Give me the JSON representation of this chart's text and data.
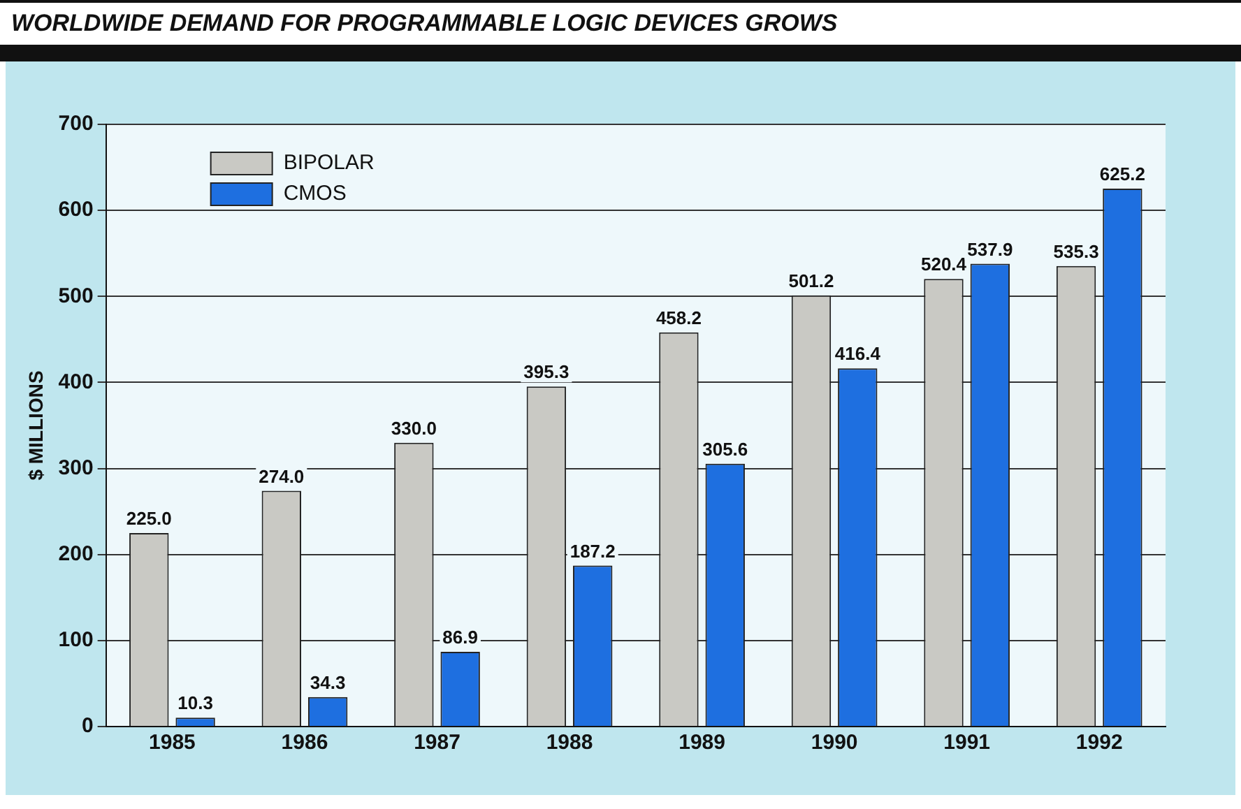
{
  "chart_data": {
    "type": "bar",
    "title": "WORLDWIDE DEMAND FOR PROGRAMMABLE LOGIC DEVICES GROWS",
    "ylabel": "$ MILLIONS",
    "categories": [
      "1985",
      "1986",
      "1987",
      "1988",
      "1989",
      "1990",
      "1991",
      "1992"
    ],
    "series": [
      {
        "name": "BIPOLAR",
        "color": "#c9c9c4",
        "values": [
          225.0,
          274.0,
          330.0,
          395.3,
          458.2,
          501.2,
          520.4,
          535.3
        ],
        "value_labels": [
          "225.0",
          "274.0",
          "330.0",
          "395.3",
          "458.2",
          "501.2",
          "520.4",
          "535.3"
        ]
      },
      {
        "name": "CMOS",
        "color": "#1e6fe0",
        "values": [
          10.3,
          34.3,
          86.9,
          187.2,
          305.6,
          416.4,
          537.9,
          625.2
        ],
        "value_labels": [
          "10.3",
          "34.3",
          "86.9",
          "187.2",
          "305.6",
          "416.4",
          "537.9",
          "625.2"
        ]
      }
    ],
    "ylim": [
      0,
      700
    ],
    "yticks": [
      0,
      100,
      200,
      300,
      400,
      500,
      600,
      700
    ],
    "grid": "y",
    "legend": "top left"
  }
}
